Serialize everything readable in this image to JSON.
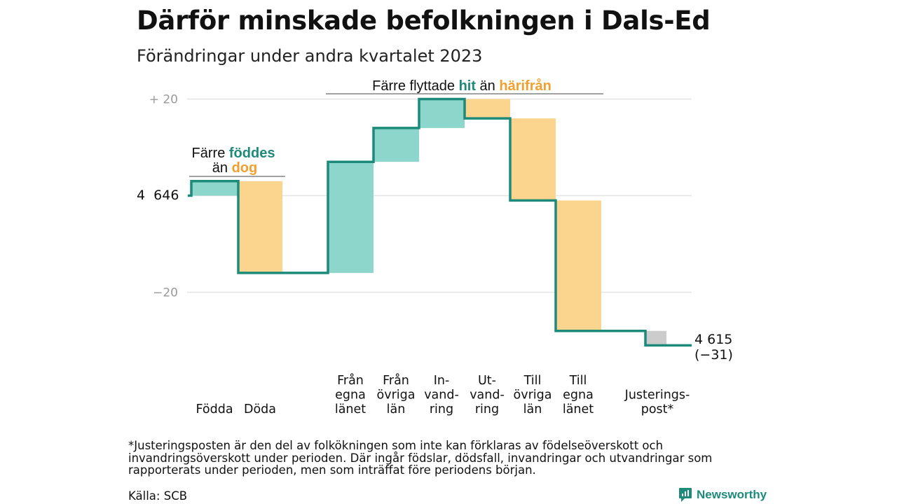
{
  "title": "Därför minskade befolkningen i Dals-Ed",
  "subtitle": "Förändringar under andra kvartalet 2023",
  "annotations": {
    "births": {
      "part1": "Färre ",
      "part2": "föddes",
      "part3": "än ",
      "part4": "dog"
    },
    "migration": {
      "part1": "Färre flyttade ",
      "part2": "hit",
      "part3": " än ",
      "part4": "härifrån"
    }
  },
  "start_label": "4  646",
  "end_label": "4 615",
  "end_change": "(−31)",
  "footnote": "*Justeringsposten är den del av folkökningen som inte kan förklaras av födelseöverskott och invandringsöverskott under perioden. Där ingår födslar, dödsfall, invandringar och utvandringar som rapporterats under perioden, men som inträffat före periodens början.",
  "source": "Källa: SCB",
  "logo": "Newsworthy",
  "colors": {
    "increase": "#8dd6cc",
    "decrease": "#fbd58e",
    "adjustment": "#cccccc",
    "line": "#1d8a7a",
    "grid": "#e3e3e3"
  },
  "chart_data": {
    "type": "waterfall",
    "start_value": 4646,
    "end_value": 4615,
    "net_change": -31,
    "categories": [
      {
        "lines": [
          "Födda"
        ],
        "value": 3,
        "kind": "increase"
      },
      {
        "lines": [
          "Döda"
        ],
        "value": -19,
        "kind": "decrease"
      },
      {
        "lines": [
          "Från",
          "egna",
          "länet"
        ],
        "value": 23,
        "kind": "increase"
      },
      {
        "lines": [
          "Från",
          "övriga",
          "län"
        ],
        "value": 7,
        "kind": "increase"
      },
      {
        "lines": [
          "In-",
          "vand-",
          "ring"
        ],
        "value": 6,
        "kind": "increase"
      },
      {
        "lines": [
          "Ut-",
          "vand-",
          "ring"
        ],
        "value": -4,
        "kind": "decrease"
      },
      {
        "lines": [
          "Till",
          "övriga",
          "län"
        ],
        "value": -17,
        "kind": "decrease"
      },
      {
        "lines": [
          "Till",
          "egna",
          "länet"
        ],
        "value": -27,
        "kind": "decrease"
      },
      {
        "lines": [
          "Justerings-",
          "post*"
        ],
        "value": -3,
        "kind": "adjustment"
      }
    ],
    "y_ticks": [
      {
        "value": 20,
        "label": "+  20"
      },
      {
        "value": -20,
        "label": "−20"
      }
    ],
    "ylim": [
      -30,
      20
    ],
    "grid": true
  }
}
